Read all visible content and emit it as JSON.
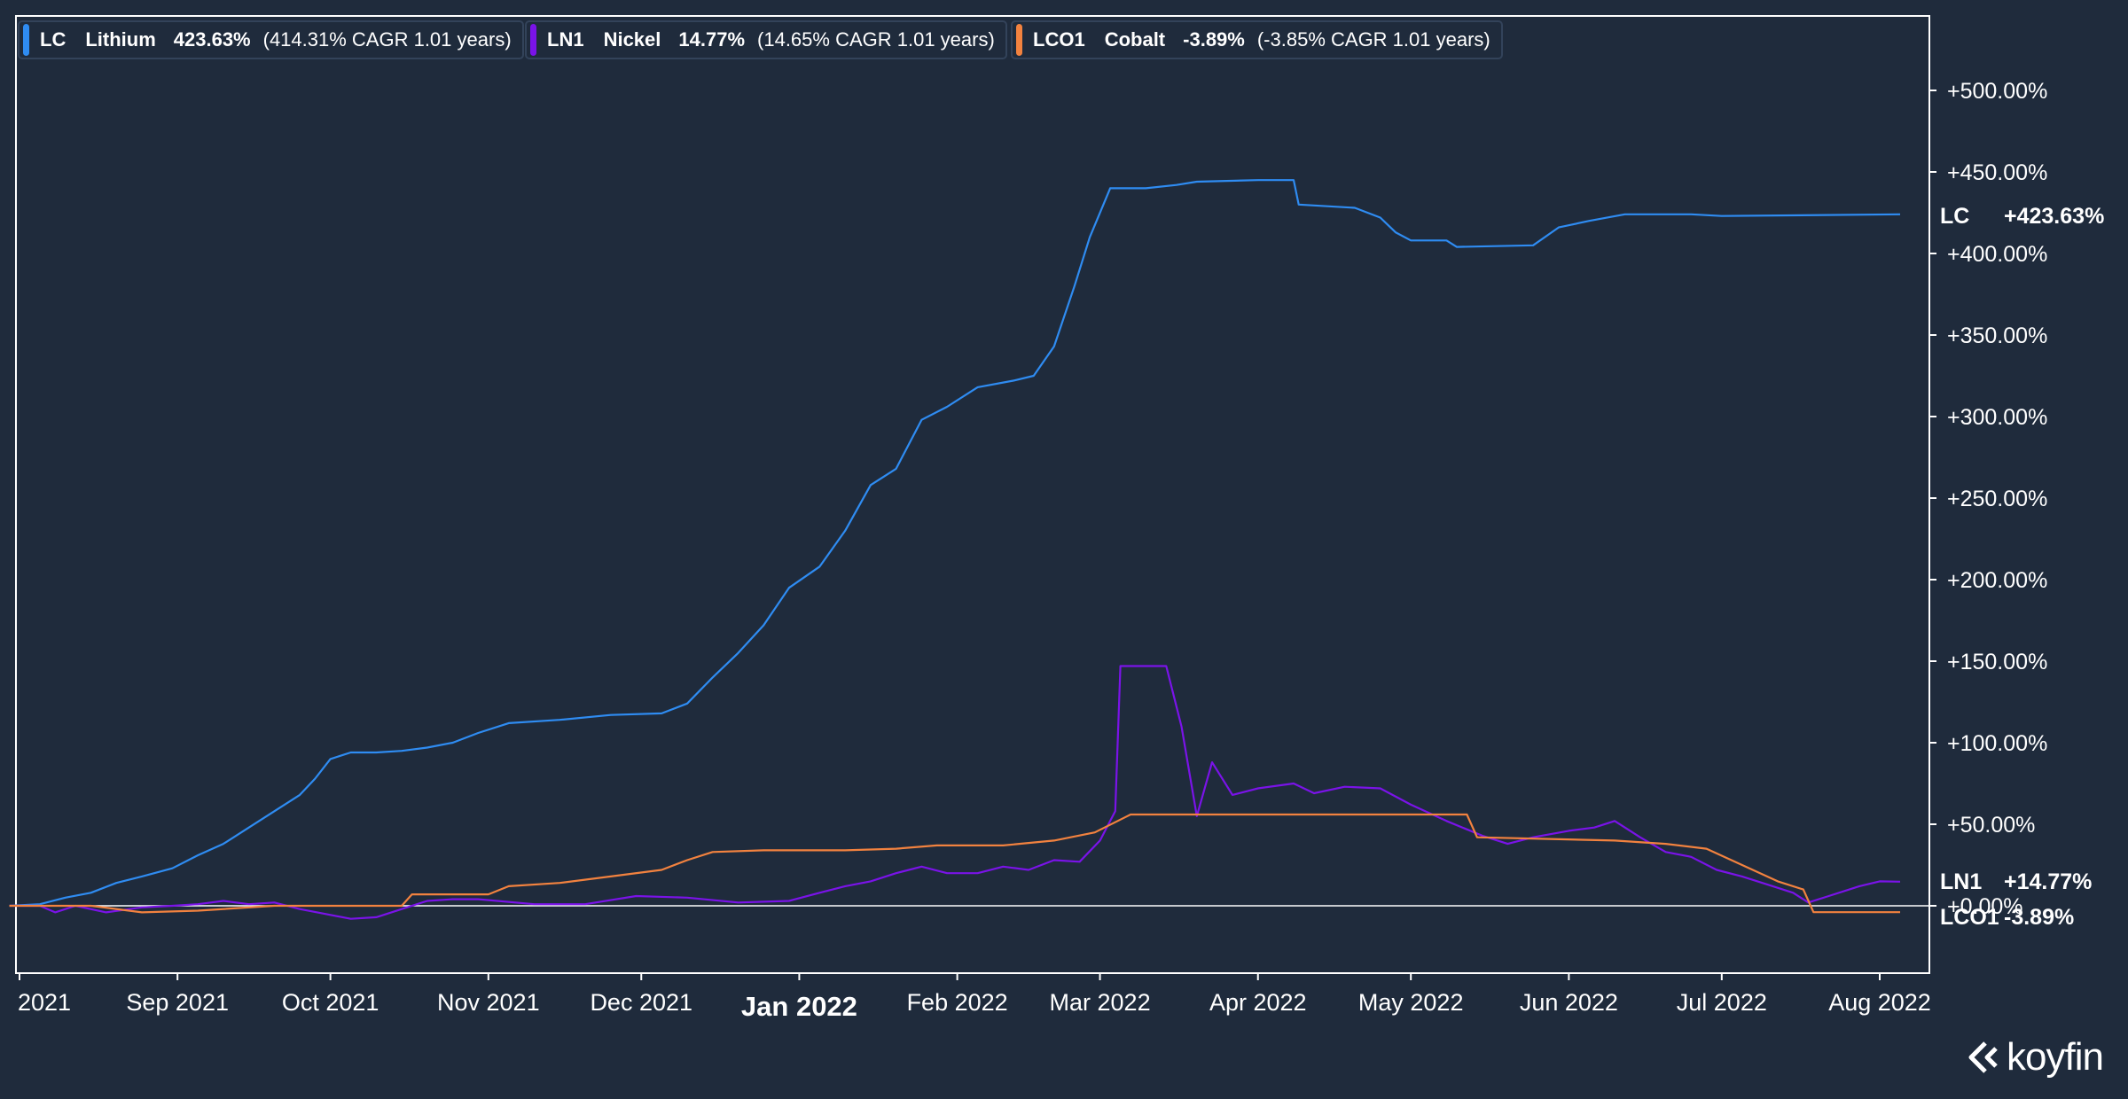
{
  "colors": {
    "background": "#1f2b3c",
    "plot_border": "#ffffff",
    "lithium": "#2f8cf2",
    "nickel": "#7a13e8",
    "cobalt": "#f2823f",
    "zero_line": "#ffffff"
  },
  "legend": [
    {
      "code": "LC",
      "name": "Lithium",
      "return": "423.63%",
      "cagr": "(414.31% CAGR 1.01 years)"
    },
    {
      "code": "LN1",
      "name": "Nickel",
      "return": "14.77%",
      "cagr": "(14.65% CAGR 1.01 years)"
    },
    {
      "code": "LCO1",
      "name": "Cobalt",
      "return": "-3.89%",
      "cagr": "(-3.85% CAGR 1.01 years)"
    }
  ],
  "logo": {
    "text": "koyfin",
    "icon": "koyfin-chevron-icon"
  },
  "chart_data": {
    "type": "line",
    "title": "",
    "xlabel": "",
    "ylabel": "",
    "ylim": [
      -40,
      550
    ],
    "grid": false,
    "legend_position": "top-left",
    "y_ticks": [
      0,
      50,
      100,
      150,
      200,
      250,
      300,
      350,
      400,
      450,
      500
    ],
    "y_tick_labels": [
      "+0.00%",
      "+50.00%",
      "+100.00%",
      "+150.00%",
      "+200.00%",
      "+250.00%",
      "+300.00%",
      "+350.00%",
      "+400.00%",
      "+450.00%",
      "+500.00%"
    ],
    "x_ticks": [
      {
        "date": "2021-08-01",
        "label": "2021",
        "major": false
      },
      {
        "date": "2021-09-01",
        "label": "Sep 2021",
        "major": false
      },
      {
        "date": "2021-10-01",
        "label": "Oct 2021",
        "major": false
      },
      {
        "date": "2021-11-01",
        "label": "Nov 2021",
        "major": false
      },
      {
        "date": "2021-12-01",
        "label": "Dec 2021",
        "major": false
      },
      {
        "date": "2022-01-01",
        "label": "Jan 2022",
        "major": true
      },
      {
        "date": "2022-02-01",
        "label": "Feb 2022",
        "major": false
      },
      {
        "date": "2022-03-01",
        "label": "Mar 2022",
        "major": false
      },
      {
        "date": "2022-04-01",
        "label": "Apr 2022",
        "major": false
      },
      {
        "date": "2022-05-01",
        "label": "May 2022",
        "major": false
      },
      {
        "date": "2022-06-01",
        "label": "Jun 2022",
        "major": false
      },
      {
        "date": "2022-07-01",
        "label": "Jul 2022",
        "major": false
      },
      {
        "date": "2022-08-01",
        "label": "Aug 2022",
        "major": false
      }
    ],
    "end_labels": [
      {
        "code": "LC",
        "value": "+423.63%",
        "color_key": "lithium"
      },
      {
        "code": "LN1",
        "value": "+14.77%",
        "color_key": "nickel"
      },
      {
        "code": "LCO1",
        "value": "-3.89%",
        "color_key": "cobalt"
      }
    ],
    "series": [
      {
        "name": "LC Lithium",
        "color_key": "lithium",
        "points": [
          [
            "2021-07-30",
            0
          ],
          [
            "2021-08-05",
            1
          ],
          [
            "2021-08-10",
            5
          ],
          [
            "2021-08-15",
            8
          ],
          [
            "2021-08-20",
            14
          ],
          [
            "2021-08-25",
            18
          ],
          [
            "2021-08-31",
            23
          ],
          [
            "2021-09-05",
            31
          ],
          [
            "2021-09-10",
            38
          ],
          [
            "2021-09-15",
            48
          ],
          [
            "2021-09-20",
            58
          ],
          [
            "2021-09-25",
            68
          ],
          [
            "2021-09-28",
            78
          ],
          [
            "2021-10-01",
            90
          ],
          [
            "2021-10-05",
            94
          ],
          [
            "2021-10-10",
            94
          ],
          [
            "2021-10-15",
            95
          ],
          [
            "2021-10-20",
            97
          ],
          [
            "2021-10-25",
            100
          ],
          [
            "2021-10-30",
            106
          ],
          [
            "2021-11-05",
            112
          ],
          [
            "2021-11-15",
            114
          ],
          [
            "2021-11-25",
            117
          ],
          [
            "2021-12-05",
            118
          ],
          [
            "2021-12-10",
            124
          ],
          [
            "2021-12-15",
            140
          ],
          [
            "2021-12-20",
            155
          ],
          [
            "2021-12-25",
            172
          ],
          [
            "2021-12-30",
            195
          ],
          [
            "2022-01-05",
            208
          ],
          [
            "2022-01-10",
            230
          ],
          [
            "2022-01-15",
            258
          ],
          [
            "2022-01-20",
            268
          ],
          [
            "2022-01-25",
            298
          ],
          [
            "2022-01-30",
            306
          ],
          [
            "2022-02-05",
            318
          ],
          [
            "2022-02-12",
            322
          ],
          [
            "2022-02-16",
            325
          ],
          [
            "2022-02-20",
            343
          ],
          [
            "2022-02-24",
            380
          ],
          [
            "2022-02-27",
            410
          ],
          [
            "2022-03-03",
            440
          ],
          [
            "2022-03-10",
            440
          ],
          [
            "2022-03-16",
            442
          ],
          [
            "2022-03-20",
            444
          ],
          [
            "2022-04-01",
            445
          ],
          [
            "2022-04-08",
            445
          ],
          [
            "2022-04-09",
            430
          ],
          [
            "2022-04-20",
            428
          ],
          [
            "2022-04-25",
            422
          ],
          [
            "2022-04-28",
            413
          ],
          [
            "2022-05-01",
            408
          ],
          [
            "2022-05-08",
            408
          ],
          [
            "2022-05-10",
            404
          ],
          [
            "2022-05-25",
            405
          ],
          [
            "2022-05-30",
            416
          ],
          [
            "2022-06-05",
            420
          ],
          [
            "2022-06-12",
            424
          ],
          [
            "2022-06-25",
            424
          ],
          [
            "2022-07-01",
            423
          ],
          [
            "2022-08-05",
            424
          ]
        ]
      },
      {
        "name": "LN1 Nickel",
        "color_key": "nickel",
        "points": [
          [
            "2021-07-30",
            0
          ],
          [
            "2021-08-05",
            0
          ],
          [
            "2021-08-08",
            -4
          ],
          [
            "2021-08-12",
            0
          ],
          [
            "2021-08-18",
            -4
          ],
          [
            "2021-08-25",
            -1
          ],
          [
            "2021-08-31",
            0
          ],
          [
            "2021-09-05",
            1
          ],
          [
            "2021-09-10",
            3
          ],
          [
            "2021-09-15",
            1
          ],
          [
            "2021-09-20",
            2
          ],
          [
            "2021-09-25",
            -2
          ],
          [
            "2021-09-30",
            -5
          ],
          [
            "2021-10-05",
            -8
          ],
          [
            "2021-10-10",
            -7
          ],
          [
            "2021-10-15",
            -2
          ],
          [
            "2021-10-20",
            3
          ],
          [
            "2021-10-25",
            4
          ],
          [
            "2021-10-30",
            4
          ],
          [
            "2021-11-10",
            1
          ],
          [
            "2021-11-20",
            1
          ],
          [
            "2021-11-30",
            6
          ],
          [
            "2021-12-10",
            5
          ],
          [
            "2021-12-20",
            2
          ],
          [
            "2021-12-30",
            3
          ],
          [
            "2022-01-05",
            8
          ],
          [
            "2022-01-10",
            12
          ],
          [
            "2022-01-15",
            15
          ],
          [
            "2022-01-20",
            20
          ],
          [
            "2022-01-25",
            24
          ],
          [
            "2022-01-30",
            20
          ],
          [
            "2022-02-05",
            20
          ],
          [
            "2022-02-10",
            24
          ],
          [
            "2022-02-15",
            22
          ],
          [
            "2022-02-20",
            28
          ],
          [
            "2022-02-25",
            27
          ],
          [
            "2022-03-01",
            40
          ],
          [
            "2022-03-04",
            58
          ],
          [
            "2022-03-05",
            147
          ],
          [
            "2022-03-14",
            147
          ],
          [
            "2022-03-17",
            110
          ],
          [
            "2022-03-20",
            55
          ],
          [
            "2022-03-23",
            88
          ],
          [
            "2022-03-27",
            68
          ],
          [
            "2022-04-01",
            72
          ],
          [
            "2022-04-08",
            75
          ],
          [
            "2022-04-12",
            69
          ],
          [
            "2022-04-18",
            73
          ],
          [
            "2022-04-25",
            72
          ],
          [
            "2022-05-01",
            62
          ],
          [
            "2022-05-08",
            52
          ],
          [
            "2022-05-15",
            43
          ],
          [
            "2022-05-20",
            38
          ],
          [
            "2022-05-25",
            42
          ],
          [
            "2022-06-01",
            46
          ],
          [
            "2022-06-06",
            48
          ],
          [
            "2022-06-10",
            52
          ],
          [
            "2022-06-15",
            42
          ],
          [
            "2022-06-20",
            33
          ],
          [
            "2022-06-25",
            30
          ],
          [
            "2022-06-30",
            22
          ],
          [
            "2022-07-05",
            18
          ],
          [
            "2022-07-10",
            13
          ],
          [
            "2022-07-15",
            8
          ],
          [
            "2022-07-18",
            2
          ],
          [
            "2022-07-22",
            6
          ],
          [
            "2022-07-28",
            12
          ],
          [
            "2022-08-01",
            15
          ],
          [
            "2022-08-05",
            14.77
          ]
        ]
      },
      {
        "name": "LCO1 Cobalt",
        "color_key": "cobalt",
        "points": [
          [
            "2021-07-30",
            0
          ],
          [
            "2021-08-15",
            0
          ],
          [
            "2021-08-25",
            -4
          ],
          [
            "2021-09-05",
            -3
          ],
          [
            "2021-09-20",
            0
          ],
          [
            "2021-10-15",
            0
          ],
          [
            "2021-10-17",
            7
          ],
          [
            "2021-11-01",
            7
          ],
          [
            "2021-11-05",
            12
          ],
          [
            "2021-11-15",
            14
          ],
          [
            "2021-11-25",
            18
          ],
          [
            "2021-12-05",
            22
          ],
          [
            "2021-12-10",
            28
          ],
          [
            "2021-12-15",
            33
          ],
          [
            "2021-12-25",
            34
          ],
          [
            "2022-01-10",
            34
          ],
          [
            "2022-01-20",
            35
          ],
          [
            "2022-01-28",
            37
          ],
          [
            "2022-02-10",
            37
          ],
          [
            "2022-02-20",
            40
          ],
          [
            "2022-02-28",
            45
          ],
          [
            "2022-03-07",
            56
          ],
          [
            "2022-05-12",
            56
          ],
          [
            "2022-05-14",
            42
          ],
          [
            "2022-06-10",
            40
          ],
          [
            "2022-06-20",
            38
          ],
          [
            "2022-06-28",
            35
          ],
          [
            "2022-07-05",
            25
          ],
          [
            "2022-07-12",
            15
          ],
          [
            "2022-07-17",
            10
          ],
          [
            "2022-07-19",
            -3.89
          ],
          [
            "2022-08-05",
            -3.89
          ]
        ]
      }
    ]
  }
}
